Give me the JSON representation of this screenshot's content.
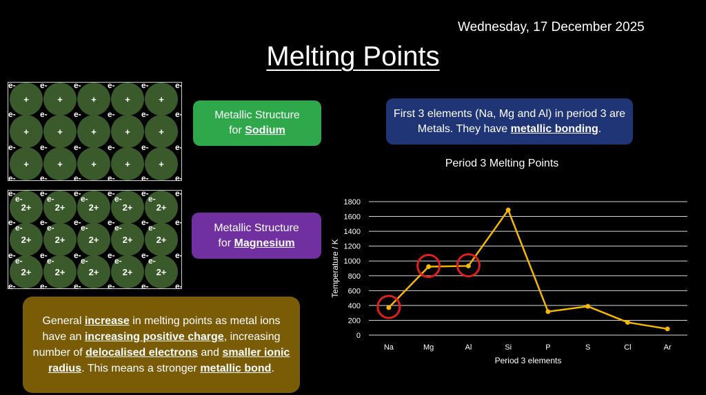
{
  "date": "Wednesday, 17 December 2025",
  "title": "Melting Points",
  "sodium_box": {
    "line1": "Metallic Structure",
    "line2_prefix": "for ",
    "line2_bold": "Sodium"
  },
  "magnesium_box": {
    "line1": "Metallic Structure",
    "line2_prefix": "for ",
    "line2_bold": "Magnesium"
  },
  "info_box": {
    "text1": "First 3 elements (Na, Mg and Al) in period 3 are Metals. They have ",
    "bold": "metallic bonding",
    "text2": "."
  },
  "general_box": {
    "t1": "General ",
    "b1": "increase",
    "t2": " in melting points as metal ions have an ",
    "b2": "increasing positive charge",
    "t3": ", increasing number of ",
    "b3": "delocalised electrons",
    "t4": " and ",
    "b4": "smaller ionic radius",
    "t5": ". This means a stronger ",
    "b5": "metallic bond",
    "t6": "."
  },
  "lattice": {
    "sodium_ion": "+",
    "magnesium_ion": "2+",
    "electron": "e-"
  },
  "chart_data": {
    "type": "line",
    "title": "Period 3 Melting Points",
    "xlabel": "Period 3 elements",
    "ylabel": "Temperature / K",
    "categories": [
      "Na",
      "Mg",
      "Al",
      "Si",
      "P",
      "S",
      "Cl",
      "Ar"
    ],
    "series": [
      {
        "values": [
          371,
          923,
          933,
          1687,
          317,
          388,
          172,
          84
        ]
      }
    ],
    "ylim": [
      0,
      1800
    ],
    "yticks": [
      0,
      200,
      400,
      600,
      800,
      1000,
      1200,
      1400,
      1600,
      1800
    ],
    "grid": true,
    "line_color": "#f5b800",
    "highlighted_categories": [
      "Na",
      "Mg",
      "Al"
    ],
    "highlight_color": "#e0201b"
  }
}
